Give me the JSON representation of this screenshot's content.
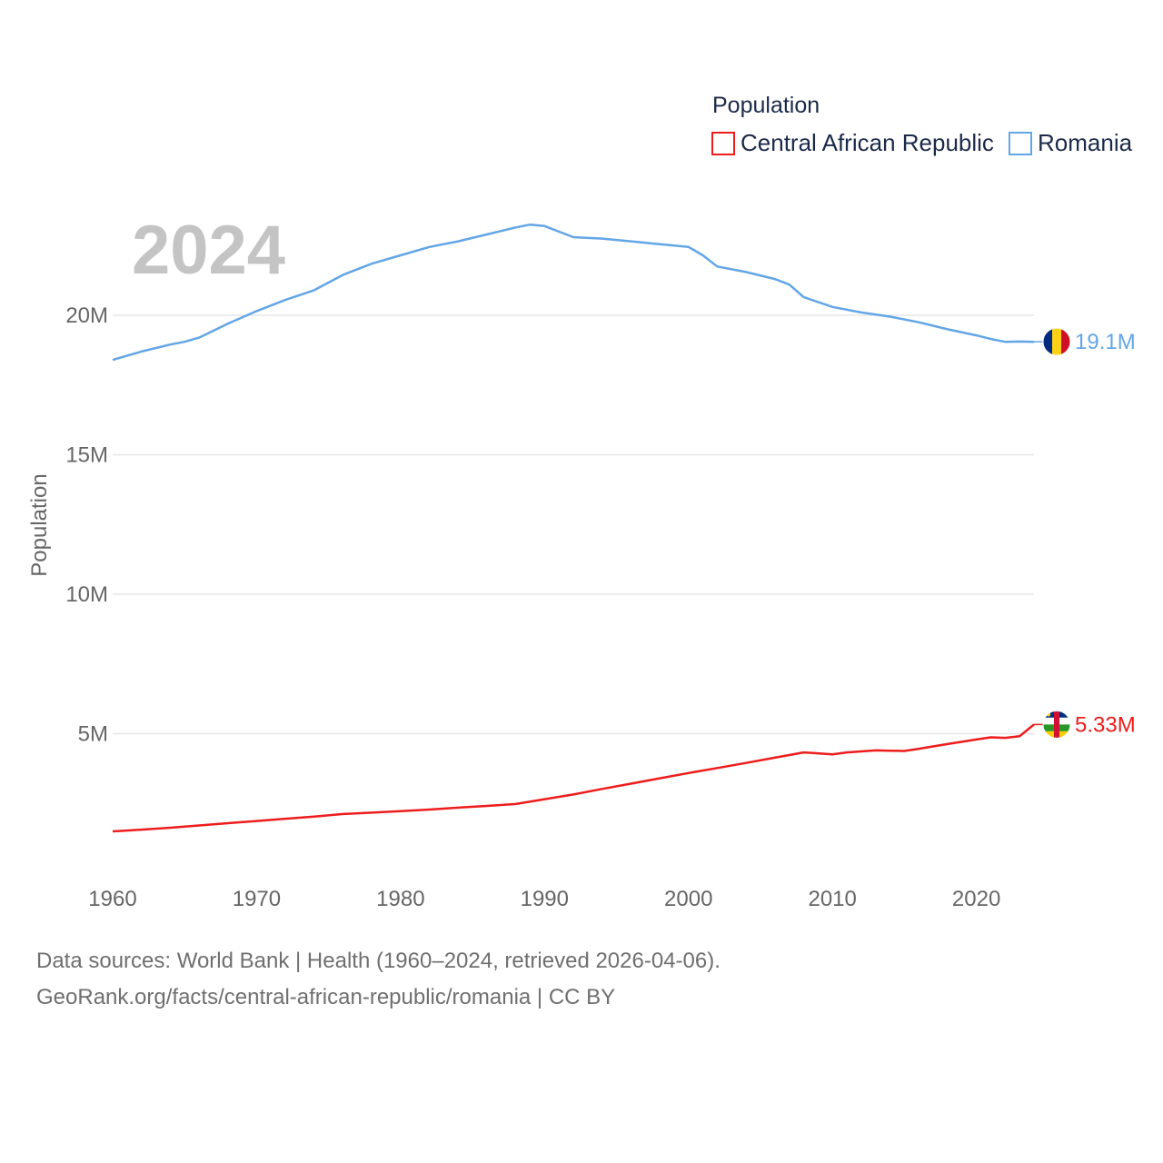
{
  "colors": {
    "central_african_republic": "#ee1c1c",
    "romania": "#63a6e6"
  },
  "chart_data": {
    "type": "line",
    "title": "Population",
    "current_year": "2024",
    "xlabel": "",
    "ylabel": "Population",
    "xlim": [
      1960,
      2024
    ],
    "ylim": [
      0,
      25000000
    ],
    "x_ticks": [
      1960,
      1970,
      1980,
      1990,
      2000,
      2010,
      2020
    ],
    "x_tick_labels": [
      "1960",
      "1970",
      "1980",
      "1990",
      "2000",
      "2010",
      "2020"
    ],
    "y_ticks": [
      5000000,
      10000000,
      15000000,
      20000000
    ],
    "y_tick_labels": [
      "5M",
      "10M",
      "15M",
      "20M"
    ],
    "legend_position": "top-right",
    "legend_title": "Population",
    "series": [
      {
        "name": "Central African Republic",
        "color": "#ee1c1c",
        "end_label": "5.33M",
        "flag": "central-african-republic-flag",
        "points": [
          [
            1960,
            1500000
          ],
          [
            1962,
            1560000
          ],
          [
            1964,
            1630000
          ],
          [
            1966,
            1710000
          ],
          [
            1968,
            1790000
          ],
          [
            1970,
            1870000
          ],
          [
            1972,
            1950000
          ],
          [
            1974,
            2030000
          ],
          [
            1976,
            2120000
          ],
          [
            1978,
            2170000
          ],
          [
            1980,
            2220000
          ],
          [
            1982,
            2280000
          ],
          [
            1984,
            2350000
          ],
          [
            1986,
            2410000
          ],
          [
            1988,
            2480000
          ],
          [
            1990,
            2650000
          ],
          [
            1992,
            2820000
          ],
          [
            1994,
            3020000
          ],
          [
            1996,
            3210000
          ],
          [
            1998,
            3400000
          ],
          [
            2000,
            3590000
          ],
          [
            2002,
            3770000
          ],
          [
            2004,
            3950000
          ],
          [
            2006,
            4140000
          ],
          [
            2008,
            4330000
          ],
          [
            2010,
            4260000
          ],
          [
            2011,
            4330000
          ],
          [
            2013,
            4400000
          ],
          [
            2014,
            4390000
          ],
          [
            2015,
            4380000
          ],
          [
            2016,
            4460000
          ],
          [
            2018,
            4630000
          ],
          [
            2020,
            4790000
          ],
          [
            2021,
            4870000
          ],
          [
            2022,
            4850000
          ],
          [
            2023,
            4910000
          ],
          [
            2024,
            5330000
          ]
        ]
      },
      {
        "name": "Romania",
        "color": "#63a6e6",
        "end_label": "19.1M",
        "flag": "romania-flag",
        "points": [
          [
            1960,
            18400000
          ],
          [
            1962,
            18700000
          ],
          [
            1964,
            18950000
          ],
          [
            1965,
            19050000
          ],
          [
            1966,
            19200000
          ],
          [
            1968,
            19700000
          ],
          [
            1970,
            20150000
          ],
          [
            1972,
            20550000
          ],
          [
            1974,
            20900000
          ],
          [
            1976,
            21450000
          ],
          [
            1978,
            21850000
          ],
          [
            1980,
            22150000
          ],
          [
            1982,
            22450000
          ],
          [
            1984,
            22650000
          ],
          [
            1986,
            22900000
          ],
          [
            1988,
            23150000
          ],
          [
            1989,
            23250000
          ],
          [
            1990,
            23200000
          ],
          [
            1992,
            22800000
          ],
          [
            1994,
            22750000
          ],
          [
            1996,
            22650000
          ],
          [
            1998,
            22550000
          ],
          [
            2000,
            22450000
          ],
          [
            2001,
            22150000
          ],
          [
            2002,
            21750000
          ],
          [
            2004,
            21550000
          ],
          [
            2006,
            21300000
          ],
          [
            2007,
            21100000
          ],
          [
            2008,
            20650000
          ],
          [
            2010,
            20300000
          ],
          [
            2012,
            20100000
          ],
          [
            2014,
            19950000
          ],
          [
            2016,
            19750000
          ],
          [
            2018,
            19500000
          ],
          [
            2020,
            19280000
          ],
          [
            2021,
            19150000
          ],
          [
            2022,
            19050000
          ],
          [
            2023,
            19060000
          ],
          [
            2024,
            19050000
          ]
        ]
      }
    ]
  },
  "footer": {
    "line1": "Data sources: World Bank | Health (1960–2024, retrieved 2026-04-06).",
    "line2": "GeoRank.org/facts/central-african-republic/romania | CC BY"
  }
}
